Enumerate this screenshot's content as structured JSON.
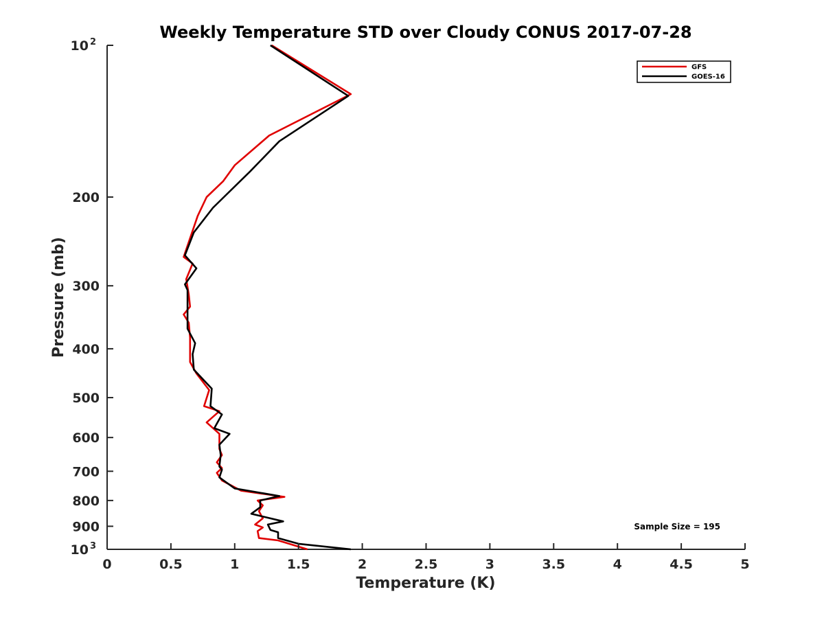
{
  "chart_data": {
    "type": "line",
    "title": "Weekly Temperature STD over Cloudy CONUS 2017-07-28",
    "xlabel": "Temperature (K)",
    "ylabel": "Pressure (mb)",
    "xlim": [
      0,
      5
    ],
    "ylim": [
      100,
      1000
    ],
    "y_scale": "log",
    "y_reversed": true,
    "x_ticks": [
      "0",
      "0.5",
      "1",
      "1.5",
      "2",
      "2.5",
      "3",
      "3.5",
      "4",
      "4.5",
      "5"
    ],
    "y_ticks": [
      {
        "value": 100,
        "base": "10",
        "exp": "2"
      },
      {
        "value": 200,
        "label": "200"
      },
      {
        "value": 300,
        "label": "300"
      },
      {
        "value": 400,
        "label": "400"
      },
      {
        "value": 500,
        "label": "500"
      },
      {
        "value": 600,
        "label": "600"
      },
      {
        "value": 700,
        "label": "700"
      },
      {
        "value": 800,
        "label": "800"
      },
      {
        "value": 900,
        "label": "900"
      },
      {
        "value": 1000,
        "base": "10",
        "exp": "3"
      }
    ],
    "legend_position": "top-right",
    "grid": false,
    "annotation": "Sample Size = 195",
    "series": [
      {
        "name": "GFS",
        "color": "#e00000",
        "points": [
          [
            1.29,
            100
          ],
          [
            1.91,
            125
          ],
          [
            1.27,
            151
          ],
          [
            1.0,
            173
          ],
          [
            0.91,
            186
          ],
          [
            0.78,
            200
          ],
          [
            0.71,
            218
          ],
          [
            0.6,
            263
          ],
          [
            0.67,
            271
          ],
          [
            0.62,
            291
          ],
          [
            0.64,
            312
          ],
          [
            0.65,
            330
          ],
          [
            0.6,
            342
          ],
          [
            0.64,
            355
          ],
          [
            0.65,
            380
          ],
          [
            0.65,
            400
          ],
          [
            0.65,
            425
          ],
          [
            0.7,
            448
          ],
          [
            0.8,
            483
          ],
          [
            0.76,
            520
          ],
          [
            0.88,
            532
          ],
          [
            0.78,
            560
          ],
          [
            0.88,
            590
          ],
          [
            0.88,
            632
          ],
          [
            0.9,
            650
          ],
          [
            0.86,
            672
          ],
          [
            0.9,
            690
          ],
          [
            0.86,
            705
          ],
          [
            0.9,
            730
          ],
          [
            1.05,
            765
          ],
          [
            1.39,
            787
          ],
          [
            1.18,
            800
          ],
          [
            1.22,
            818
          ],
          [
            1.19,
            840
          ],
          [
            1.22,
            868
          ],
          [
            1.16,
            893
          ],
          [
            1.22,
            905
          ],
          [
            1.18,
            920
          ],
          [
            1.19,
            950
          ],
          [
            1.34,
            960
          ],
          [
            1.57,
            1000
          ]
        ]
      },
      {
        "name": "GOES-16",
        "color": "#000000",
        "points": [
          [
            1.28,
            100
          ],
          [
            1.89,
            126
          ],
          [
            1.35,
            155
          ],
          [
            1.12,
            178
          ],
          [
            0.83,
            210
          ],
          [
            0.68,
            235
          ],
          [
            0.61,
            261
          ],
          [
            0.7,
            277
          ],
          [
            0.61,
            298
          ],
          [
            0.63,
            306
          ],
          [
            0.63,
            365
          ],
          [
            0.69,
            390
          ],
          [
            0.67,
            410
          ],
          [
            0.68,
            440
          ],
          [
            0.82,
            480
          ],
          [
            0.81,
            520
          ],
          [
            0.9,
            540
          ],
          [
            0.84,
            575
          ],
          [
            0.96,
            590
          ],
          [
            0.88,
            620
          ],
          [
            0.89,
            650
          ],
          [
            0.88,
            685
          ],
          [
            0.9,
            695
          ],
          [
            0.88,
            720
          ],
          [
            1.0,
            757
          ],
          [
            1.35,
            784
          ],
          [
            1.2,
            800
          ],
          [
            1.2,
            825
          ],
          [
            1.13,
            850
          ],
          [
            1.38,
            880
          ],
          [
            1.26,
            893
          ],
          [
            1.28,
            915
          ],
          [
            1.34,
            925
          ],
          [
            1.34,
            950
          ],
          [
            1.5,
            975
          ],
          [
            1.91,
            1000
          ]
        ]
      }
    ]
  }
}
